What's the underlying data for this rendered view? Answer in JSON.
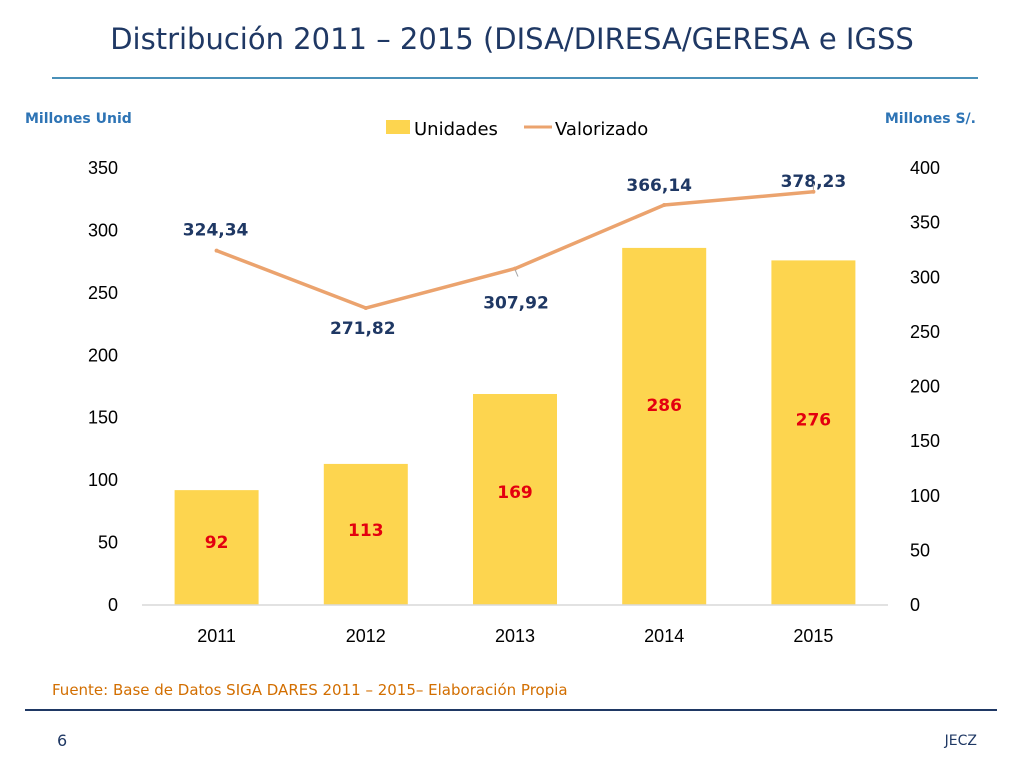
{
  "slide": {
    "title": "Distribución 2011 – 2015 (DISA/DIRESA/GERESA e IGSS",
    "source": "Fuente: Base de Datos SIGA DARES 2011 – 2015– Elaboración Propia",
    "page_number": "6",
    "author": "JECZ"
  },
  "colors": {
    "title": "#1F3864",
    "bar": "#FDD54F",
    "line": "#EBA36E",
    "bar_label": "#E3000F",
    "line_label": "#1F3864",
    "axis_title": "#2E74B5",
    "source": "#D26E00"
  },
  "chart_data": {
    "type": "bar",
    "categories": [
      "2011",
      "2012",
      "2013",
      "2014",
      "2015"
    ],
    "series": [
      {
        "name": "Unidades",
        "type": "bar",
        "axis": "left",
        "values": [
          92,
          113,
          169,
          286,
          276
        ],
        "labels": [
          "92",
          "113",
          "169",
          "286",
          "276"
        ]
      },
      {
        "name": "Valorizado",
        "type": "line",
        "axis": "right",
        "values": [
          324.34,
          271.82,
          307.92,
          366.14,
          378.23
        ],
        "labels": [
          "324,34",
          "271,82",
          "307,92",
          "366,14",
          "378,23"
        ]
      }
    ],
    "y_left": {
      "label": "Millones Unid",
      "ylim": [
        0,
        350
      ],
      "ticks": [
        "0",
        "50",
        "100",
        "150",
        "200",
        "250",
        "300",
        "350"
      ]
    },
    "y_right": {
      "label": "Millones S/.",
      "ylim": [
        0,
        400
      ],
      "ticks": [
        "0",
        "50",
        "100",
        "150",
        "200",
        "250",
        "300",
        "350",
        "400"
      ]
    },
    "legend": "top",
    "grid": false
  }
}
